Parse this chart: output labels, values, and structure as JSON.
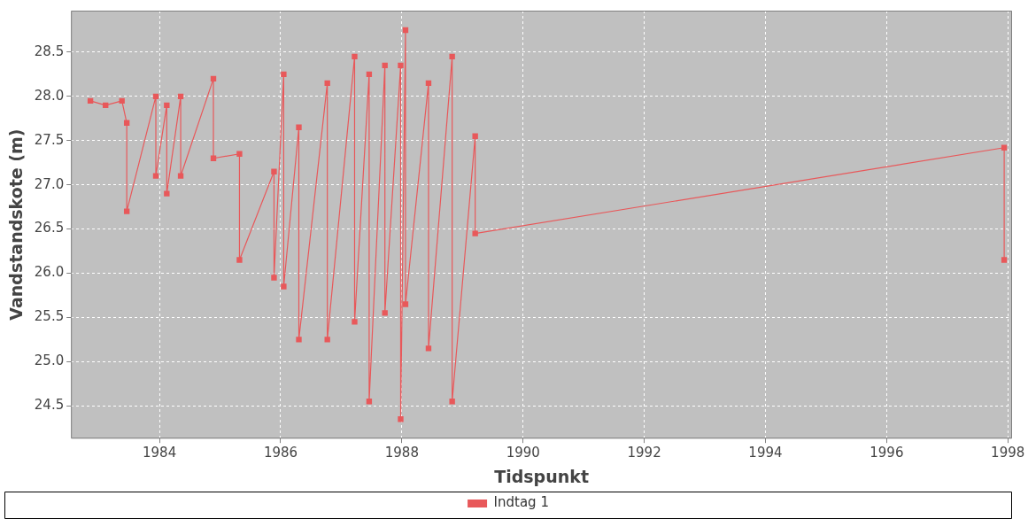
{
  "chart_data": {
    "type": "line",
    "xlabel": "Tidspunkt",
    "ylabel": "Vandstandskote (m)",
    "xlim": [
      1982.54,
      1998.07
    ],
    "xticks": [
      1984,
      1986,
      1988,
      1990,
      1992,
      1994,
      1996,
      1998
    ],
    "ylim": [
      24.13,
      28.97
    ],
    "yticks": [
      24.5,
      {
        "value": 25,
        "label": "25.0"
      },
      25.5,
      {
        "value": 26,
        "label": "26.0"
      },
      26.5,
      {
        "value": 27,
        "label": "27.0"
      },
      27.5,
      {
        "value": 28,
        "label": "28.0"
      },
      28.5
    ],
    "grid": true,
    "legend": "bottom",
    "marker": "square",
    "line_style": "solid",
    "series": [
      {
        "name": "Indtag 1",
        "color": "#e8585a",
        "x": [
          1982.86,
          1983.11,
          1983.38,
          1983.46,
          1983.46,
          1983.94,
          1983.94,
          1984.12,
          1984.12,
          1984.35,
          1984.35,
          1984.89,
          1984.89,
          1985.32,
          1985.32,
          1985.89,
          1985.89,
          1986.05,
          1986.05,
          1986.3,
          1986.3,
          1986.77,
          1986.77,
          1987.22,
          1987.22,
          1987.46,
          1987.46,
          1987.72,
          1987.72,
          1987.98,
          1987.98,
          1988.06,
          1988.06,
          1988.44,
          1988.44,
          1988.83,
          1988.83,
          1989.21,
          1989.21,
          1997.94,
          1997.94
        ],
        "values": [
          27.95,
          27.9,
          27.95,
          27.7,
          26.7,
          28.0,
          27.1,
          27.9,
          26.9,
          28.0,
          27.1,
          28.2,
          27.3,
          27.35,
          26.15,
          27.15,
          25.95,
          28.25,
          25.85,
          27.65,
          25.25,
          28.15,
          25.25,
          28.45,
          25.45,
          28.25,
          24.55,
          28.35,
          25.55,
          28.35,
          24.35,
          28.75,
          25.65,
          28.15,
          25.15,
          28.45,
          24.55,
          27.55,
          26.45,
          27.42,
          26.15
        ]
      }
    ]
  }
}
